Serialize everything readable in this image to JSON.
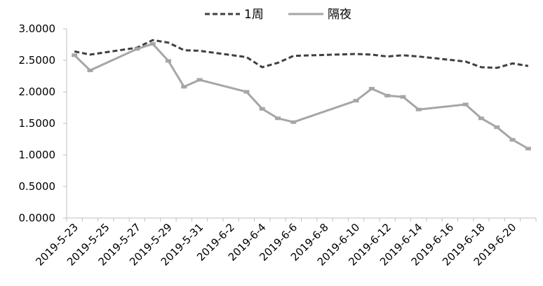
{
  "chart_data": {
    "type": "line",
    "title": "",
    "xlabel": "",
    "ylabel": "",
    "ylim": [
      0,
      3
    ],
    "yticks": [
      "0.0000",
      "0.5000",
      "1.0000",
      "1.5000",
      "2.0000",
      "2.5000",
      "3.0000"
    ],
    "xtick_labels": [
      "2019-5-23",
      "2019-5-25",
      "2019-5-27",
      "2019-5-29",
      "2019-5-31",
      "2019-6-2",
      "2019-6-4",
      "2019-6-6",
      "2019-6-8",
      "2019-6-10",
      "2019-6-12",
      "2019-6-14",
      "2019-6-16",
      "2019-6-18",
      "2019-6-20"
    ],
    "x_range": [
      "2019-5-23",
      "2019-6-21"
    ],
    "grid": false,
    "legend_position": "top-center",
    "colors": {
      "1周": "#404040",
      "隔夜": "#a6a6a6",
      "axis": "#bfbfbf"
    },
    "series": [
      {
        "name": "1周",
        "style": "dashed",
        "points": [
          {
            "x": "2019-5-23",
            "y": 2.64
          },
          {
            "x": "2019-5-24",
            "y": 2.59
          },
          {
            "x": "2019-5-27",
            "y": 2.7
          },
          {
            "x": "2019-5-28",
            "y": 2.82
          },
          {
            "x": "2019-5-29",
            "y": 2.78
          },
          {
            "x": "2019-5-30",
            "y": 2.66
          },
          {
            "x": "2019-5-31",
            "y": 2.65
          },
          {
            "x": "2019-6-3",
            "y": 2.55
          },
          {
            "x": "2019-6-4",
            "y": 2.39
          },
          {
            "x": "2019-6-5",
            "y": 2.46
          },
          {
            "x": "2019-6-6",
            "y": 2.57
          },
          {
            "x": "2019-6-10",
            "y": 2.6
          },
          {
            "x": "2019-6-11",
            "y": 2.59
          },
          {
            "x": "2019-6-12",
            "y": 2.56
          },
          {
            "x": "2019-6-13",
            "y": 2.58
          },
          {
            "x": "2019-6-14",
            "y": 2.56
          },
          {
            "x": "2019-6-17",
            "y": 2.48
          },
          {
            "x": "2019-6-18",
            "y": 2.39
          },
          {
            "x": "2019-6-19",
            "y": 2.38
          },
          {
            "x": "2019-6-20",
            "y": 2.45
          },
          {
            "x": "2019-6-21",
            "y": 2.41
          }
        ]
      },
      {
        "name": "隔夜",
        "style": "solid",
        "points": [
          {
            "x": "2019-5-23",
            "y": 2.58
          },
          {
            "x": "2019-5-24",
            "y": 2.34
          },
          {
            "x": "2019-5-27",
            "y": 2.68
          },
          {
            "x": "2019-5-28",
            "y": 2.76
          },
          {
            "x": "2019-5-29",
            "y": 2.49
          },
          {
            "x": "2019-5-30",
            "y": 2.08
          },
          {
            "x": "2019-5-31",
            "y": 2.19
          },
          {
            "x": "2019-6-3",
            "y": 2.0
          },
          {
            "x": "2019-6-4",
            "y": 1.73
          },
          {
            "x": "2019-6-5",
            "y": 1.58
          },
          {
            "x": "2019-6-6",
            "y": 1.52
          },
          {
            "x": "2019-6-10",
            "y": 1.86
          },
          {
            "x": "2019-6-11",
            "y": 2.05
          },
          {
            "x": "2019-6-12",
            "y": 1.94
          },
          {
            "x": "2019-6-13",
            "y": 1.92
          },
          {
            "x": "2019-6-14",
            "y": 1.72
          },
          {
            "x": "2019-6-17",
            "y": 1.8
          },
          {
            "x": "2019-6-18",
            "y": 1.58
          },
          {
            "x": "2019-6-19",
            "y": 1.44
          },
          {
            "x": "2019-6-20",
            "y": 1.24
          },
          {
            "x": "2019-6-21",
            "y": 1.1
          }
        ]
      }
    ]
  }
}
